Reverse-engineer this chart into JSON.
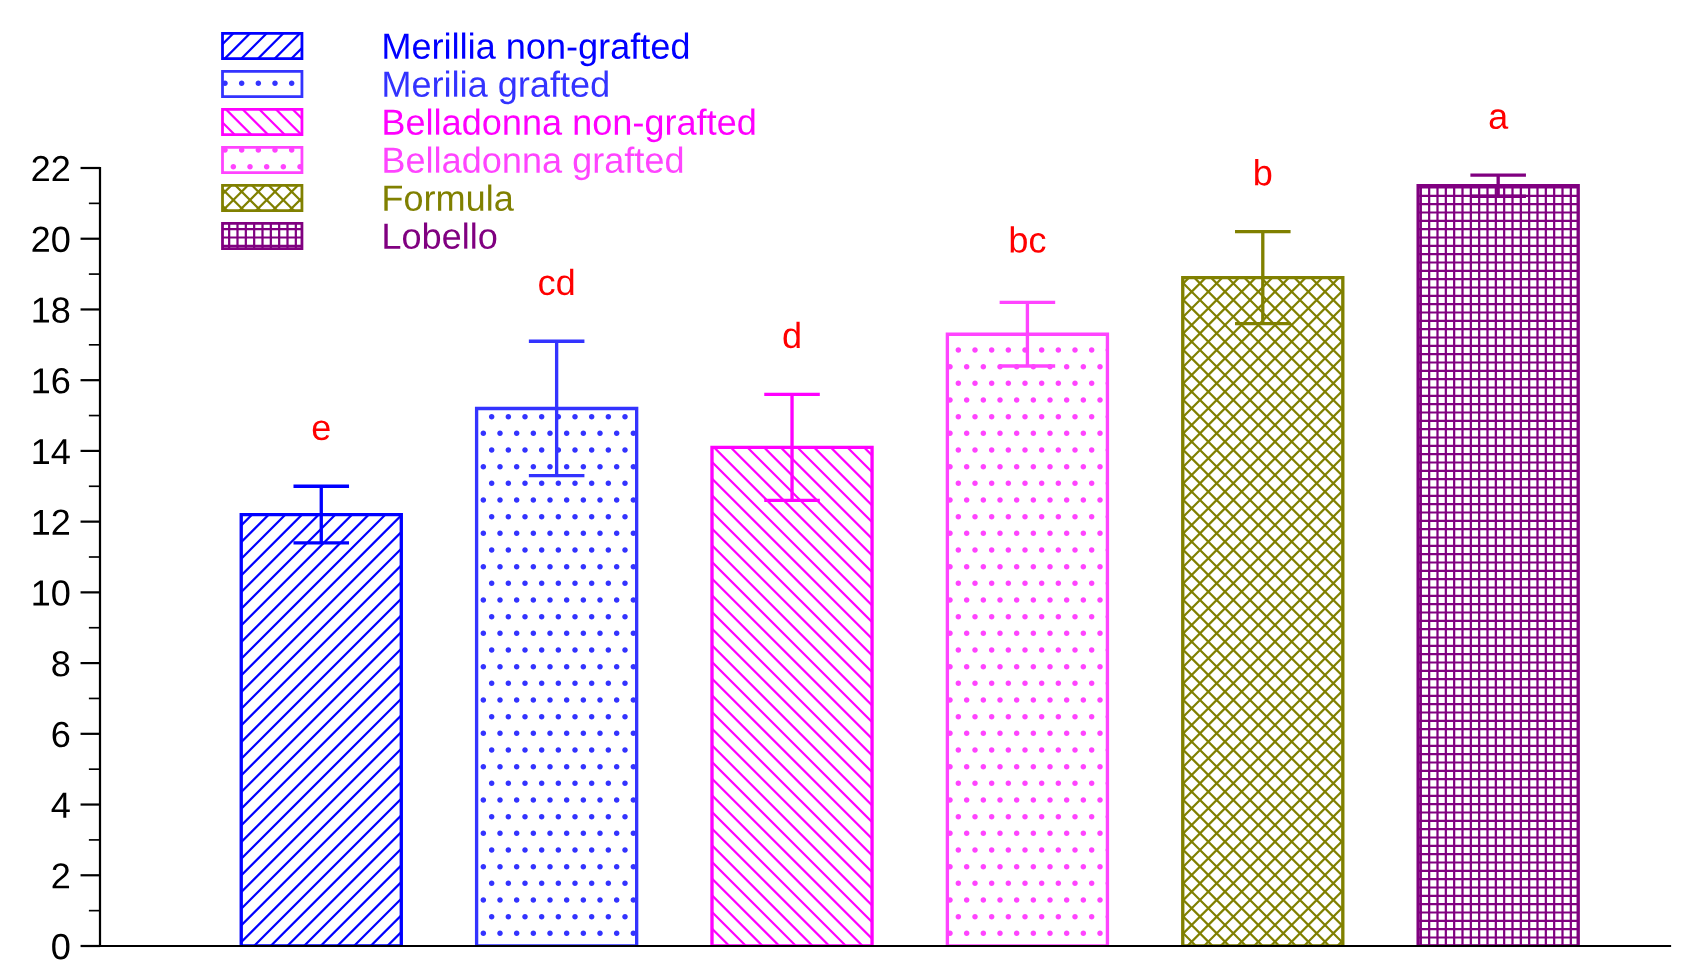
{
  "chart_data": {
    "type": "bar",
    "categories": [
      null,
      null,
      null,
      null,
      null,
      null
    ],
    "series": [
      {
        "name": "Merillia non-grafted",
        "color": "#0000ff",
        "values": [
          12.2,
          null,
          null,
          null,
          null,
          null
        ],
        "errors": [
          0.8,
          null,
          null,
          null,
          null,
          null
        ]
      },
      {
        "name": "Merilia grafted",
        "color": "#3333ff",
        "values": [
          null,
          15.2,
          null,
          null,
          null,
          null
        ],
        "errors": [
          null,
          1.9,
          null,
          null,
          null,
          null
        ]
      },
      {
        "name": "Belladonna non-grafted",
        "color": "#ff00ff",
        "values": [
          null,
          null,
          14.1,
          null,
          null,
          null
        ],
        "errors": [
          null,
          null,
          1.5,
          null,
          null,
          null
        ]
      },
      {
        "name": "Belladonna grafted",
        "color": "#ff44ff",
        "values": [
          null,
          null,
          null,
          17.3,
          null,
          null
        ],
        "errors": [
          null,
          null,
          null,
          0.9,
          null,
          null
        ]
      },
      {
        "name": "Formula",
        "color": "#808000",
        "values": [
          null,
          null,
          null,
          null,
          18.9,
          null
        ],
        "errors": [
          null,
          null,
          null,
          null,
          1.3,
          null
        ]
      },
      {
        "name": "Lobello",
        "color": "#800080",
        "values": [
          null,
          null,
          null,
          null,
          null,
          21.5
        ],
        "errors": [
          null,
          null,
          null,
          null,
          null,
          0.3
        ]
      }
    ],
    "annotations": [
      {
        "text": "e",
        "y": 13.0
      },
      {
        "text": "cd",
        "y": 17.1
      },
      {
        "text": "d",
        "y": 15.6
      },
      {
        "text": "bc",
        "y": 18.3
      },
      {
        "text": "b",
        "y": 20.2
      },
      {
        "text": "a",
        "y": 21.8
      }
    ],
    "ylim": [
      0,
      22
    ],
    "yticks": [
      0,
      2,
      4,
      6,
      8,
      10,
      12,
      14,
      16,
      18,
      20,
      22
    ],
    "grid": false,
    "legend": "top left",
    "tick_labels": "y"
  }
}
